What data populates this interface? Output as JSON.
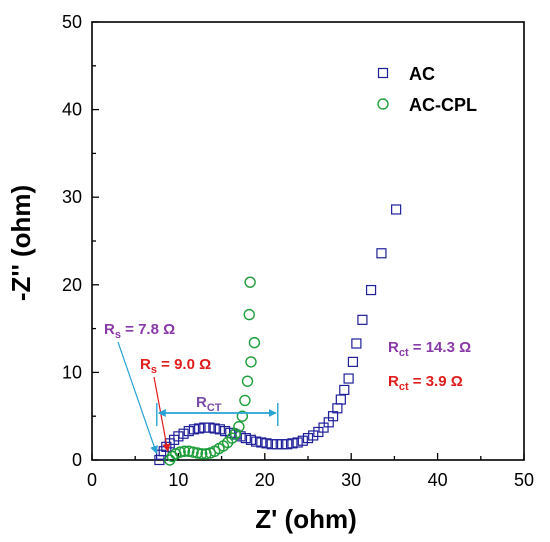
{
  "chart_data": {
    "type": "scatter",
    "xlabel": "Z' (ohm)",
    "ylabel": "-Z'' (ohm)",
    "xlim": [
      0,
      50
    ],
    "ylim": [
      0,
      50
    ],
    "xticks": [
      "0",
      "10",
      "20",
      "30",
      "40",
      "50"
    ],
    "yticks": [
      "0",
      "10",
      "20",
      "30",
      "40",
      "50"
    ],
    "grid": false,
    "legend_position": "top-right",
    "series": [
      {
        "name": "AC",
        "marker": "square",
        "color": "#1f1f9a",
        "points": [
          [
            7.8,
            0.0
          ],
          [
            8.0,
            0.6
          ],
          [
            8.3,
            1.0
          ],
          [
            8.6,
            1.5
          ],
          [
            9.0,
            1.9
          ],
          [
            9.5,
            2.3
          ],
          [
            10.0,
            2.7
          ],
          [
            10.6,
            3.0
          ],
          [
            11.2,
            3.3
          ],
          [
            11.8,
            3.5
          ],
          [
            12.4,
            3.6
          ],
          [
            13.0,
            3.7
          ],
          [
            13.6,
            3.7
          ],
          [
            14.2,
            3.6
          ],
          [
            14.8,
            3.5
          ],
          [
            15.4,
            3.3
          ],
          [
            16.0,
            3.1
          ],
          [
            16.6,
            2.9
          ],
          [
            17.2,
            2.7
          ],
          [
            17.8,
            2.5
          ],
          [
            18.4,
            2.3
          ],
          [
            19.0,
            2.1
          ],
          [
            19.6,
            2.0
          ],
          [
            20.2,
            1.9
          ],
          [
            20.8,
            1.8
          ],
          [
            21.4,
            1.8
          ],
          [
            22.0,
            1.8
          ],
          [
            22.6,
            1.8
          ],
          [
            23.2,
            1.9
          ],
          [
            23.8,
            2.0
          ],
          [
            24.4,
            2.2
          ],
          [
            25.0,
            2.5
          ],
          [
            25.6,
            2.8
          ],
          [
            26.2,
            3.2
          ],
          [
            26.8,
            3.7
          ],
          [
            27.4,
            4.3
          ],
          [
            27.9,
            5.0
          ],
          [
            28.4,
            5.9
          ],
          [
            28.8,
            6.9
          ],
          [
            29.2,
            8.0
          ],
          [
            29.7,
            9.3
          ],
          [
            30.2,
            11.2
          ],
          [
            30.6,
            13.3
          ],
          [
            31.3,
            16.0
          ],
          [
            32.3,
            19.4
          ],
          [
            33.5,
            23.6
          ],
          [
            35.2,
            28.6
          ]
        ]
      },
      {
        "name": "AC-CPL",
        "marker": "circle",
        "color": "#1e9e3a",
        "points": [
          [
            9.0,
            0.0
          ],
          [
            9.3,
            0.4
          ],
          [
            9.7,
            0.7
          ],
          [
            10.2,
            0.9
          ],
          [
            10.7,
            1.0
          ],
          [
            11.2,
            1.0
          ],
          [
            11.7,
            0.9
          ],
          [
            12.2,
            0.8
          ],
          [
            12.7,
            0.7
          ],
          [
            13.2,
            0.7
          ],
          [
            13.7,
            0.8
          ],
          [
            14.2,
            1.0
          ],
          [
            14.7,
            1.3
          ],
          [
            15.2,
            1.6
          ],
          [
            15.7,
            2.0
          ],
          [
            16.2,
            2.5
          ],
          [
            16.6,
            3.0
          ],
          [
            17.0,
            3.8
          ],
          [
            17.4,
            5.0
          ],
          [
            17.7,
            6.8
          ],
          [
            18.0,
            9.0
          ],
          [
            18.4,
            11.2
          ],
          [
            18.8,
            13.4
          ],
          [
            18.2,
            16.6
          ],
          [
            18.3,
            20.3
          ]
        ]
      }
    ],
    "annotations": [
      {
        "label": "R",
        "sub": "s",
        "rest": " = 7.8 Ω",
        "color": "#8a3aa8"
      },
      {
        "label": "R",
        "sub": "s",
        "rest": " = 9.0 Ω",
        "color": "#e01c1c"
      },
      {
        "label": "R",
        "sub": "CT",
        "rest": "",
        "color": "#7a4aa8"
      },
      {
        "label": "R",
        "sub": "ct",
        "rest": " = 14.3 Ω",
        "color": "#8a3aa8"
      },
      {
        "label": "R",
        "sub": "ct",
        "rest": " = 3.9 Ω",
        "color": "#e01c1c"
      }
    ],
    "rct_span": [
      7.5,
      21.5
    ],
    "rct_arrow_color": "#29a3d6"
  }
}
